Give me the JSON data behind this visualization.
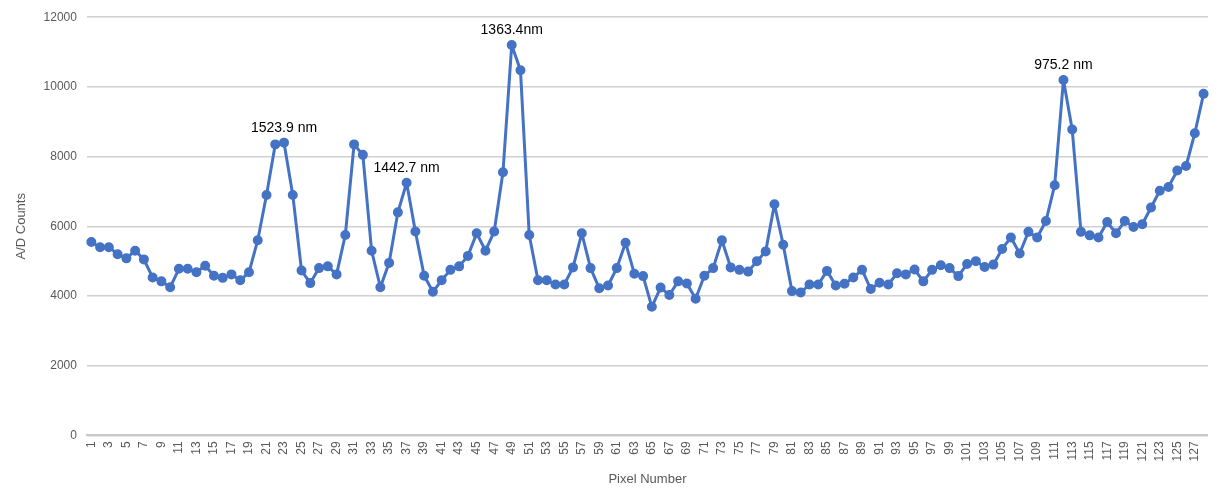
{
  "chart_data": {
    "type": "line",
    "xlabel": "Pixel Number",
    "ylabel": "A/D Counts",
    "categories": [
      "1",
      null,
      "3",
      null,
      "5",
      null,
      "7",
      null,
      "9",
      null,
      "11",
      null,
      "13",
      null,
      "15",
      null,
      "17",
      null,
      "19",
      null,
      "21",
      null,
      "23",
      null,
      "25",
      null,
      "27",
      null,
      "29",
      null,
      "31",
      null,
      "33",
      null,
      "35",
      null,
      "37",
      null,
      "39",
      null,
      "41",
      null,
      "43",
      null,
      "45",
      null,
      "47",
      null,
      "49",
      null,
      "51",
      null,
      "53",
      null,
      "55",
      null,
      "57",
      null,
      "59",
      null,
      "61",
      null,
      "63",
      null,
      "65",
      null,
      "67",
      null,
      "69",
      null,
      "71",
      null,
      "73",
      null,
      "75",
      null,
      "77",
      null,
      "79",
      null,
      "81",
      null,
      "83",
      null,
      "85",
      null,
      "87",
      null,
      "89",
      null,
      "91",
      null,
      "93",
      null,
      "95",
      null,
      "97",
      null,
      "99",
      null,
      "101",
      null,
      "103",
      null,
      "105",
      null,
      "107",
      null,
      "109",
      null,
      "111",
      null,
      "113",
      null,
      "115",
      null,
      "117",
      null,
      "119",
      null,
      "121",
      null,
      "123",
      null,
      "125",
      null,
      "127",
      null
    ],
    "series": [
      {
        "color": "#4472c4",
        "values": [
          5550,
          5400,
          5400,
          5200,
          5080,
          5300,
          5050,
          4530,
          4420,
          4250,
          4780,
          4780,
          4680,
          4870,
          4580,
          4520,
          4620,
          4450,
          4680,
          5600,
          6900,
          8350,
          8400,
          6900,
          4730,
          4370,
          4800,
          4850,
          4620,
          5750,
          8350,
          8050,
          5300,
          4250,
          4950,
          6400,
          7250,
          5850,
          4580,
          4120,
          4450,
          4750,
          4850,
          5150,
          5800,
          5300,
          5850,
          7550,
          11200,
          10480,
          5750,
          4450,
          4450,
          4330,
          4330,
          4820,
          5800,
          4800,
          4220,
          4300,
          4800,
          5530,
          4640,
          4570,
          3690,
          4240,
          4030,
          4420,
          4360,
          3920,
          4580,
          4800,
          5600,
          4820,
          4750,
          4700,
          5000,
          5280,
          6630,
          5470,
          4140,
          4100,
          4330,
          4330,
          4720,
          4300,
          4350,
          4530,
          4750,
          4200,
          4380,
          4330,
          4650,
          4620,
          4760,
          4420,
          4750,
          4880,
          4800,
          4570,
          4920,
          5000,
          4830,
          4900,
          5350,
          5680,
          5220,
          5840,
          5680,
          6150,
          7180,
          10200,
          8780,
          5840,
          5740,
          5680,
          6120,
          5800,
          6150,
          5980,
          6060,
          6540,
          7020,
          7130,
          7600,
          7730,
          8670,
          9800
        ]
      }
    ],
    "ylim": [
      0,
      12000
    ],
    "yticks": [
      0,
      2000,
      4000,
      6000,
      8000,
      10000,
      12000
    ],
    "grid": "y",
    "legend": false,
    "marker": "circle",
    "line_style": "solid",
    "annotations": [
      {
        "text": "1523.9 nm",
        "x": "23",
        "y": 8400
      },
      {
        "text": "1442.7 nm",
        "x": "37",
        "y": 7250
      },
      {
        "text": "1363.4nm",
        "x": "49",
        "y": 11200
      },
      {
        "text": "975.2 nm",
        "y": 10200
      }
    ]
  }
}
